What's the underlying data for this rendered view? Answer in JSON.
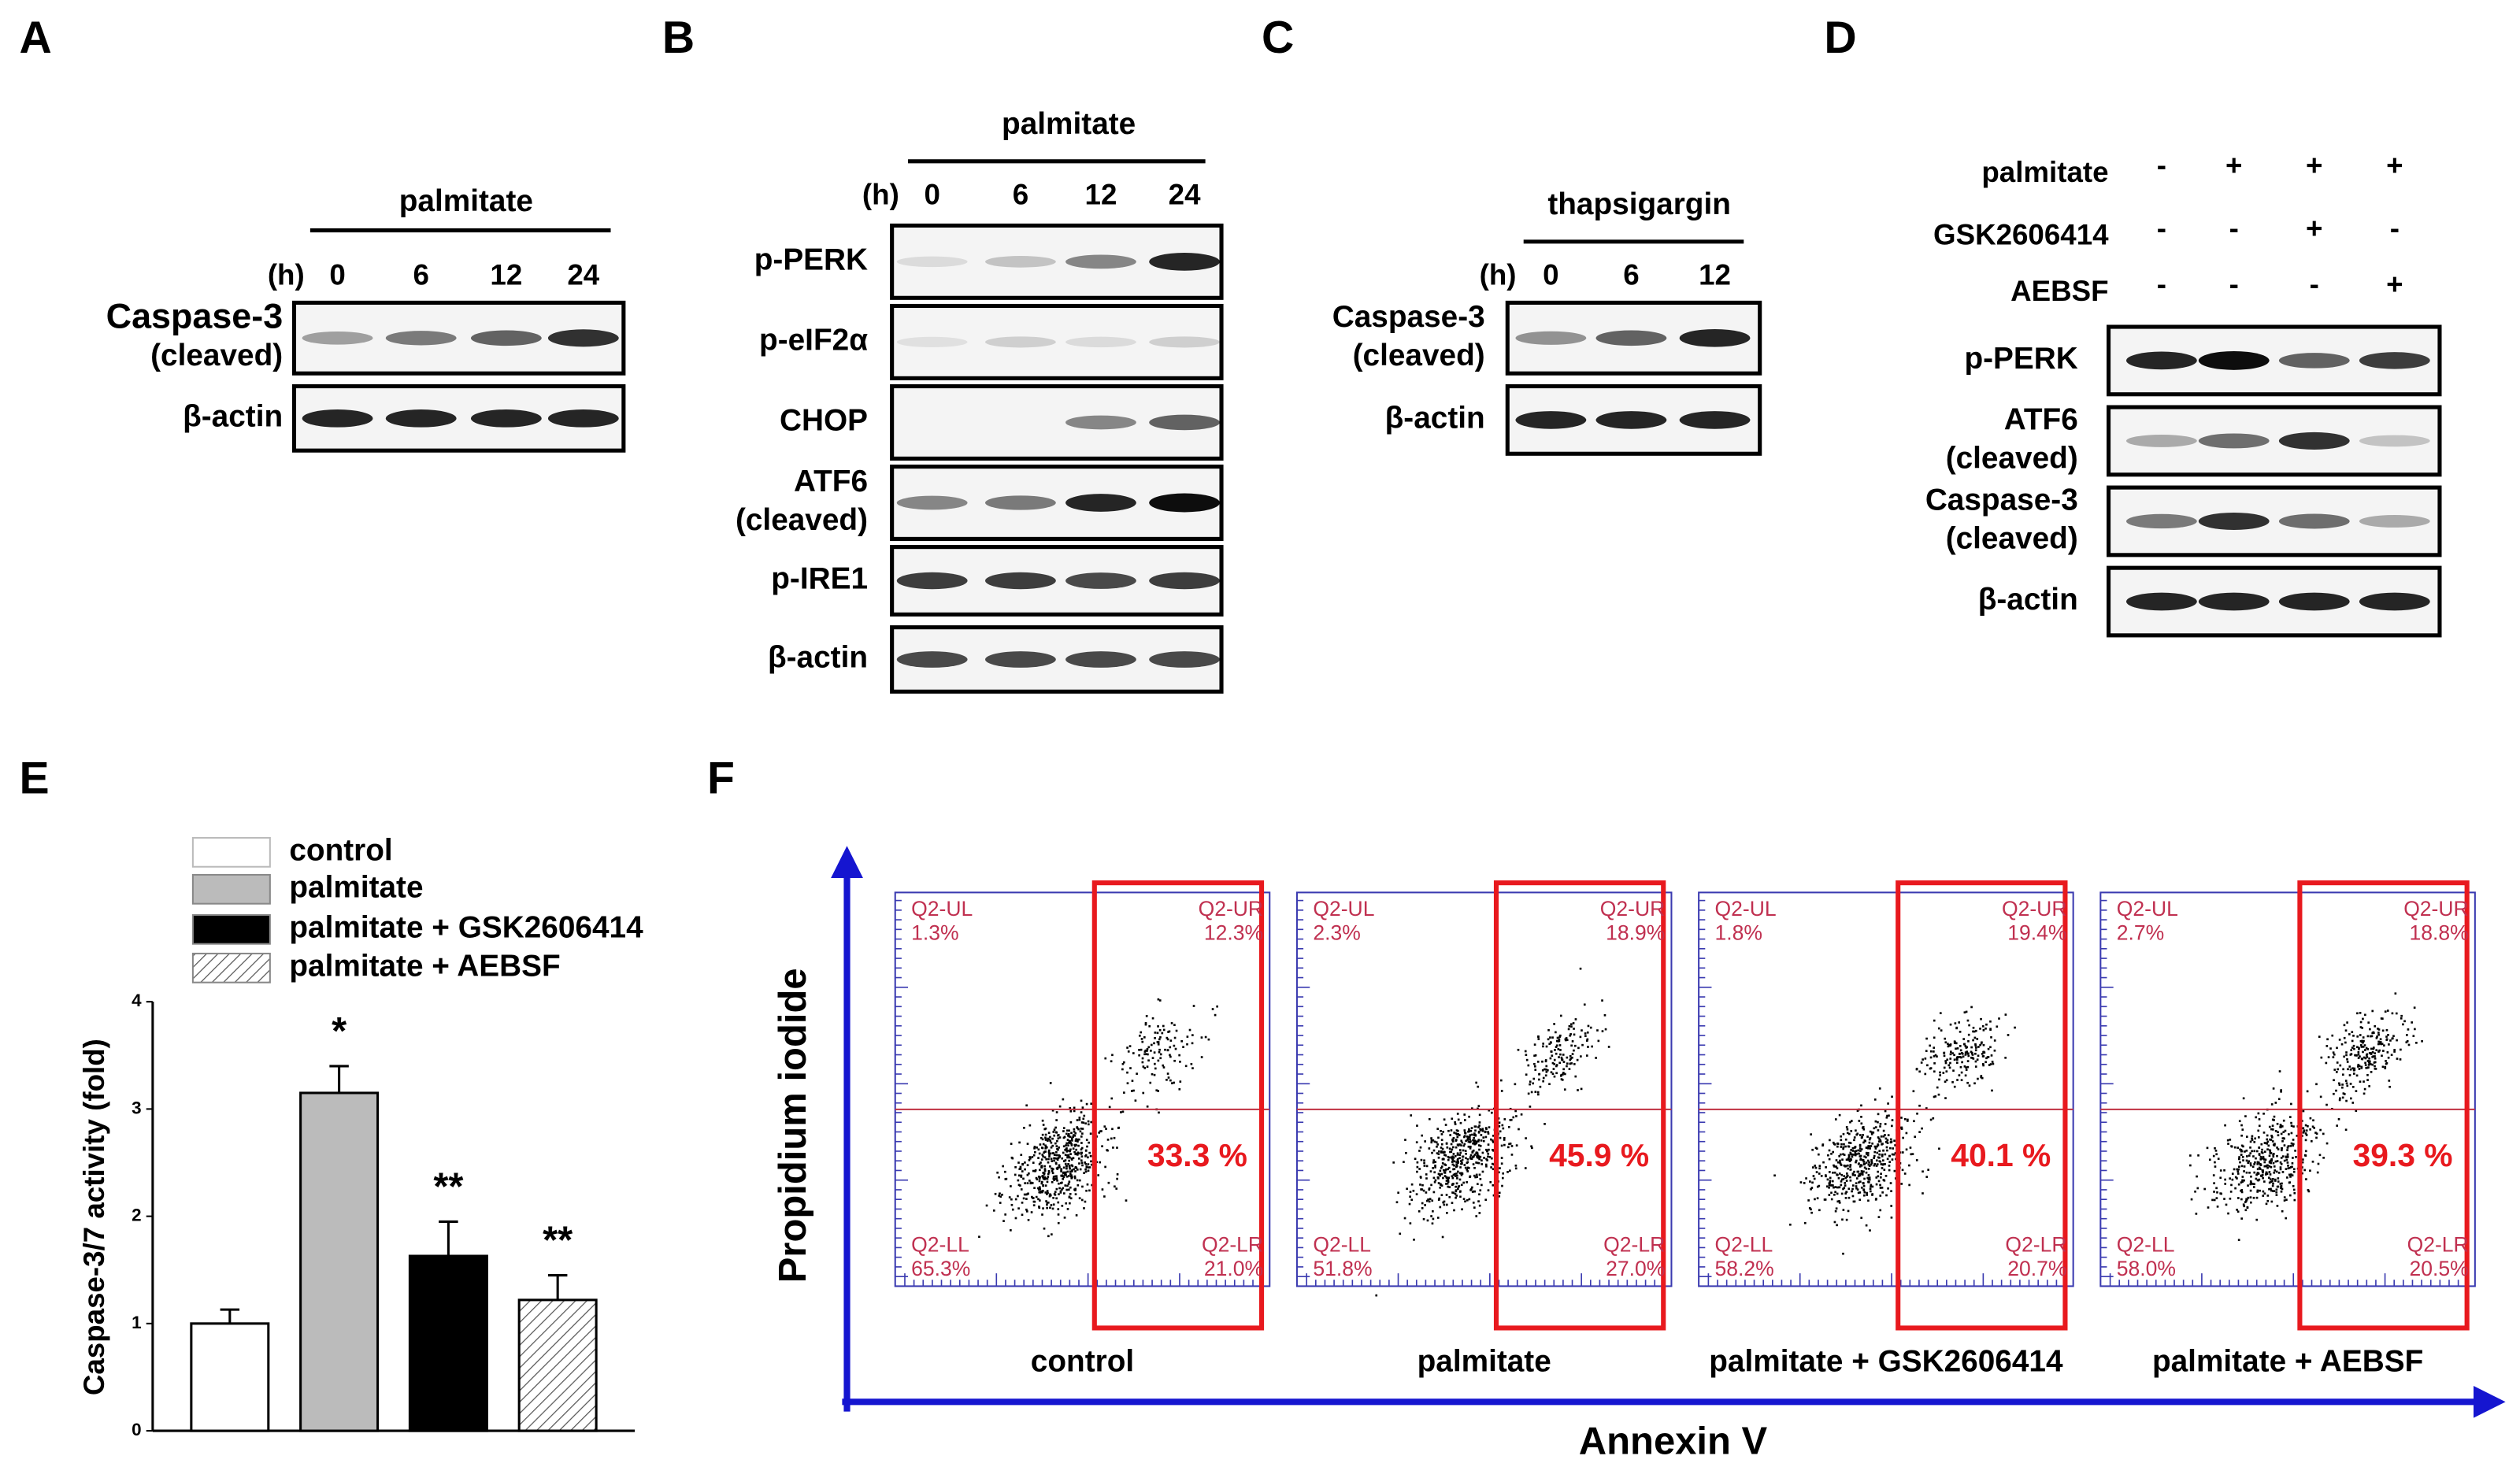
{
  "panels": [
    {
      "label": "A",
      "treatment": "palmitate",
      "time_unit": "(h)",
      "lanes": [
        "0",
        "6",
        "12",
        "24"
      ],
      "rows": [
        [
          "Caspase-3",
          "(cleaved)"
        ],
        [
          "β-actin"
        ]
      ]
    },
    {
      "label": "B",
      "treatment": "palmitate",
      "time_unit": "(h)",
      "lanes": [
        "0",
        "6",
        "12",
        "24"
      ],
      "rows": [
        [
          "p-PERK"
        ],
        [
          "p-eIF2α"
        ],
        [
          "CHOP"
        ],
        [
          "ATF6",
          "(cleaved)"
        ],
        [
          "p-IRE1"
        ],
        [
          "β-actin"
        ]
      ]
    },
    {
      "label": "C",
      "treatment": "thapsigargin",
      "time_unit": "(h)",
      "lanes": [
        "0",
        "6",
        "12"
      ],
      "rows": [
        [
          "Caspase-3",
          "(cleaved)"
        ],
        [
          "β-actin"
        ]
      ]
    },
    {
      "label": "D",
      "conditions": [
        {
          "name": "palmitate",
          "signs": [
            "-",
            "+",
            "+",
            "+"
          ]
        },
        {
          "name": "GSK2606414",
          "signs": [
            "-",
            "-",
            "+",
            "-"
          ]
        },
        {
          "name": "AEBSF",
          "signs": [
            "-",
            "-",
            "-",
            "+"
          ]
        }
      ],
      "rows": [
        [
          "p-PERK"
        ],
        [
          "ATF6",
          "(cleaved)"
        ],
        [
          "Caspase-3",
          "(cleaved)"
        ],
        [
          "β-actin"
        ]
      ]
    }
  ],
  "chart_data": {
    "type": "bar",
    "panel_label": "E",
    "ylabel": "Caspase-3/7 activity (fold)",
    "categories": [
      "control",
      "palmitate",
      "palmitate + GSK2606414",
      "palmitate + AEBSF"
    ],
    "values": [
      1.0,
      3.15,
      1.63,
      1.22
    ],
    "errors": [
      0.13,
      0.25,
      0.32,
      0.23
    ],
    "significance": [
      null,
      "*",
      "**",
      "**"
    ],
    "fills": [
      "#ffffff",
      "#bbbbbb",
      "#000000",
      "#ffffff"
    ],
    "hatch": [
      false,
      false,
      false,
      true
    ],
    "ylim": [
      0,
      4
    ],
    "yticks": [
      0,
      1,
      2,
      3,
      4
    ]
  },
  "flow": {
    "label": "F",
    "xlabel": "Annexin V",
    "ylabel": "Propidium iodide",
    "plots": [
      {
        "name": "control",
        "UL": [
          "Q2-UL",
          "1.3%"
        ],
        "UR": [
          "Q2-UR",
          "12.3%"
        ],
        "LL": [
          "Q2-LL",
          "65.3%"
        ],
        "LR": [
          "Q2-LR",
          "21.0%"
        ],
        "gate": "33.3 %"
      },
      {
        "name": "palmitate",
        "UL": [
          "Q2-UL",
          "2.3%"
        ],
        "UR": [
          "Q2-UR",
          "18.9%"
        ],
        "LL": [
          "Q2-LL",
          "51.8%"
        ],
        "LR": [
          "Q2-LR",
          "27.0%"
        ],
        "gate": "45.9 %"
      },
      {
        "name": "palmitate + GSK2606414",
        "UL": [
          "Q2-UL",
          "1.8%"
        ],
        "UR": [
          "Q2-UR",
          "19.4%"
        ],
        "LL": [
          "Q2-LL",
          "58.2%"
        ],
        "LR": [
          "Q2-LR",
          "20.7%"
        ],
        "gate": "40.1 %"
      },
      {
        "name": "palmitate + AEBSF",
        "UL": [
          "Q2-UL",
          "2.7%"
        ],
        "UR": [
          "Q2-UR",
          "18.8%"
        ],
        "LL": [
          "Q2-LL",
          "58.0%"
        ],
        "LR": [
          "Q2-LR",
          "20.5%"
        ],
        "gate": "39.3 %"
      }
    ]
  }
}
